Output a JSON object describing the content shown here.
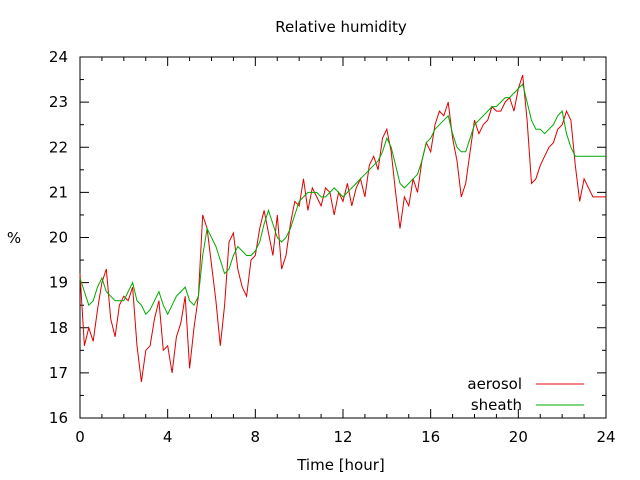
{
  "chart_data": {
    "type": "line",
    "title": "Relative humidity",
    "xlabel": "Time [hour]",
    "ylabel": "%",
    "xlim": [
      0,
      24
    ],
    "ylim": [
      16,
      24
    ],
    "xticks": [
      0,
      4,
      8,
      12,
      16,
      20,
      24
    ],
    "yticks": [
      16,
      17,
      18,
      19,
      20,
      21,
      22,
      23,
      24
    ],
    "legend_position": "bottom-right",
    "series": [
      {
        "name": "aerosol",
        "color": "#dd0000",
        "x": [
          0,
          0.2,
          0.4,
          0.6,
          0.8,
          1.0,
          1.2,
          1.4,
          1.6,
          1.8,
          2.0,
          2.2,
          2.4,
          2.6,
          2.8,
          3.0,
          3.2,
          3.4,
          3.6,
          3.8,
          4.0,
          4.2,
          4.4,
          4.6,
          4.8,
          5.0,
          5.2,
          5.4,
          5.6,
          5.8,
          6.0,
          6.2,
          6.4,
          6.6,
          6.8,
          7.0,
          7.2,
          7.4,
          7.6,
          7.8,
          8.0,
          8.2,
          8.4,
          8.6,
          8.8,
          9.0,
          9.2,
          9.4,
          9.6,
          9.8,
          10.0,
          10.2,
          10.4,
          10.6,
          10.8,
          11.0,
          11.2,
          11.4,
          11.6,
          11.8,
          12.0,
          12.2,
          12.4,
          12.6,
          12.8,
          13.0,
          13.2,
          13.4,
          13.6,
          13.8,
          14.0,
          14.2,
          14.4,
          14.6,
          14.8,
          15.0,
          15.2,
          15.4,
          15.6,
          15.8,
          16.0,
          16.2,
          16.4,
          16.6,
          16.8,
          17.0,
          17.2,
          17.4,
          17.6,
          17.8,
          18.0,
          18.2,
          18.4,
          18.6,
          18.8,
          19.0,
          19.2,
          19.4,
          19.6,
          19.8,
          20.0,
          20.2,
          20.4,
          20.6,
          20.8,
          21.0,
          21.2,
          21.4,
          21.6,
          21.8,
          22.0,
          22.2,
          22.4,
          22.6,
          22.8,
          23.0,
          23.2,
          23.4,
          23.6,
          23.8,
          24.0
        ],
        "values": [
          19.2,
          17.6,
          18.0,
          17.7,
          18.4,
          19.0,
          19.3,
          18.2,
          17.8,
          18.5,
          18.7,
          18.6,
          18.9,
          17.6,
          16.8,
          17.5,
          17.6,
          18.2,
          18.6,
          17.5,
          17.6,
          17.0,
          17.8,
          18.1,
          18.7,
          17.1,
          18.0,
          18.7,
          20.5,
          20.2,
          19.4,
          18.6,
          17.6,
          18.5,
          19.9,
          20.1,
          19.3,
          18.9,
          18.7,
          19.5,
          19.6,
          20.2,
          20.6,
          20.1,
          19.6,
          20.5,
          19.3,
          19.6,
          20.3,
          20.8,
          20.7,
          21.3,
          20.6,
          21.1,
          20.9,
          20.7,
          21.1,
          21.0,
          20.5,
          21.0,
          20.8,
          21.2,
          20.7,
          21.1,
          21.3,
          20.9,
          21.6,
          21.8,
          21.5,
          22.2,
          22.4,
          21.9,
          21.0,
          20.2,
          20.9,
          20.7,
          21.3,
          21.0,
          21.7,
          22.1,
          21.9,
          22.5,
          22.8,
          22.7,
          23.0,
          22.2,
          21.7,
          20.9,
          21.2,
          21.9,
          22.6,
          22.3,
          22.5,
          22.6,
          22.9,
          22.8,
          22.8,
          23.0,
          23.1,
          22.8,
          23.3,
          23.6,
          22.6,
          21.2,
          21.3,
          21.6,
          21.8,
          22.0,
          22.1,
          22.4,
          22.5,
          22.8,
          22.6,
          21.6,
          20.8,
          21.3,
          21.1,
          20.9,
          20.9,
          20.9,
          20.9
        ],
        "series_note": ""
      },
      {
        "name": "sheath",
        "color": "#00aa00",
        "x": [
          0,
          0.2,
          0.4,
          0.6,
          0.8,
          1.0,
          1.2,
          1.4,
          1.6,
          1.8,
          2.0,
          2.2,
          2.4,
          2.6,
          2.8,
          3.0,
          3.2,
          3.4,
          3.6,
          3.8,
          4.0,
          4.2,
          4.4,
          4.6,
          4.8,
          5.0,
          5.2,
          5.4,
          5.6,
          5.8,
          6.0,
          6.2,
          6.4,
          6.6,
          6.8,
          7.0,
          7.2,
          7.4,
          7.6,
          7.8,
          8.0,
          8.2,
          8.4,
          8.6,
          8.8,
          9.0,
          9.2,
          9.4,
          9.6,
          9.8,
          10.0,
          10.2,
          10.4,
          10.6,
          10.8,
          11.0,
          11.2,
          11.4,
          11.6,
          11.8,
          12.0,
          12.2,
          12.4,
          12.6,
          12.8,
          13.0,
          13.2,
          13.4,
          13.6,
          13.8,
          14.0,
          14.2,
          14.4,
          14.6,
          14.8,
          15.0,
          15.2,
          15.4,
          15.6,
          15.8,
          16.0,
          16.2,
          16.4,
          16.6,
          16.8,
          17.0,
          17.2,
          17.4,
          17.6,
          17.8,
          18.0,
          18.2,
          18.4,
          18.6,
          18.8,
          19.0,
          19.2,
          19.4,
          19.6,
          19.8,
          20.0,
          20.2,
          20.4,
          20.6,
          20.8,
          21.0,
          21.2,
          21.4,
          21.6,
          21.8,
          22.0,
          22.2,
          22.4,
          22.6,
          22.8,
          23.0,
          23.2,
          23.4,
          23.6,
          23.8,
          24.0
        ],
        "values": [
          19.1,
          18.8,
          18.5,
          18.6,
          18.9,
          19.1,
          18.8,
          18.7,
          18.6,
          18.6,
          18.6,
          18.8,
          19.0,
          18.6,
          18.5,
          18.3,
          18.4,
          18.6,
          18.8,
          18.5,
          18.3,
          18.5,
          18.7,
          18.8,
          18.9,
          18.6,
          18.5,
          18.7,
          19.6,
          20.2,
          20.0,
          19.8,
          19.5,
          19.2,
          19.3,
          19.6,
          19.8,
          19.7,
          19.6,
          19.6,
          19.7,
          19.9,
          20.3,
          20.6,
          20.3,
          20.0,
          19.9,
          20.0,
          20.2,
          20.5,
          20.8,
          20.9,
          21.0,
          21.0,
          21.0,
          20.9,
          20.9,
          21.0,
          21.1,
          21.0,
          20.9,
          21.0,
          21.1,
          21.2,
          21.3,
          21.4,
          21.5,
          21.6,
          21.7,
          21.9,
          22.2,
          22.0,
          21.6,
          21.2,
          21.1,
          21.2,
          21.3,
          21.4,
          21.7,
          22.1,
          22.2,
          22.4,
          22.5,
          22.6,
          22.7,
          22.3,
          22.0,
          21.9,
          21.9,
          22.2,
          22.5,
          22.6,
          22.7,
          22.8,
          22.9,
          22.9,
          23.0,
          23.1,
          23.1,
          23.2,
          23.3,
          23.4,
          23.0,
          22.6,
          22.4,
          22.4,
          22.3,
          22.4,
          22.5,
          22.7,
          22.8,
          22.3,
          22.0,
          21.8,
          21.8,
          21.8,
          21.8,
          21.8,
          21.8,
          21.8,
          21.8
        ]
      }
    ]
  }
}
